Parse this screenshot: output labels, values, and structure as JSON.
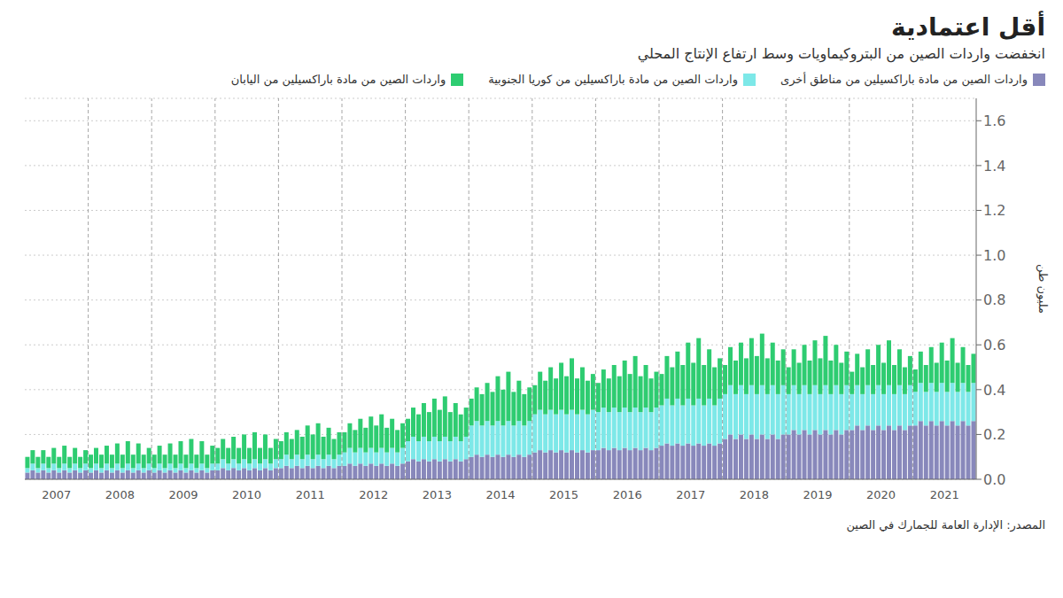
{
  "chart_data": {
    "type": "bar",
    "title": "أقل اعتمادية",
    "subtitle": "انخفضت واردات الصين من البتروكيماويات وسط ارتفاع الإنتاج المحلي",
    "ylabel": "مليون طن",
    "source": "المصدر: الإدارة العامة للجمارك في الصين",
    "stacked": true,
    "grid": true,
    "legend": "top",
    "ylim": [
      0,
      1.7
    ],
    "yticks": [
      {
        "value": 0,
        "label": "0.0"
      },
      0.2,
      0.4,
      0.6,
      0.8,
      {
        "value": 1.0,
        "label": "1.0"
      },
      1.2,
      1.4,
      1.6
    ],
    "categories": [
      "2007",
      null,
      null,
      null,
      null,
      null,
      null,
      null,
      null,
      null,
      null,
      null,
      "2008",
      null,
      null,
      null,
      null,
      null,
      null,
      null,
      null,
      null,
      null,
      null,
      "2009",
      null,
      null,
      null,
      null,
      null,
      null,
      null,
      null,
      null,
      null,
      null,
      "2010",
      null,
      null,
      null,
      null,
      null,
      null,
      null,
      null,
      null,
      null,
      null,
      "2011",
      null,
      null,
      null,
      null,
      null,
      null,
      null,
      null,
      null,
      null,
      null,
      "2012",
      null,
      null,
      null,
      null,
      null,
      null,
      null,
      null,
      null,
      null,
      null,
      "2013",
      null,
      null,
      null,
      null,
      null,
      null,
      null,
      null,
      null,
      null,
      null,
      "2014",
      null,
      null,
      null,
      null,
      null,
      null,
      null,
      null,
      null,
      null,
      null,
      "2015",
      null,
      null,
      null,
      null,
      null,
      null,
      null,
      null,
      null,
      null,
      null,
      "2016",
      null,
      null,
      null,
      null,
      null,
      null,
      null,
      null,
      null,
      null,
      null,
      "2017",
      null,
      null,
      null,
      null,
      null,
      null,
      null,
      null,
      null,
      null,
      null,
      "2018",
      null,
      null,
      null,
      null,
      null,
      null,
      null,
      null,
      null,
      null,
      null,
      "2019",
      null,
      null,
      null,
      null,
      null,
      null,
      null,
      null,
      null,
      null,
      null,
      "2020",
      null,
      null,
      null,
      null,
      null,
      null,
      null,
      null,
      null,
      null,
      null,
      "2021",
      null,
      null,
      null,
      null,
      null,
      null,
      null,
      null,
      null,
      null,
      null
    ],
    "series": [
      {
        "name": "واردات الصين من مادة باراكسيلين من مناطق أخرى",
        "color": "#8888bb",
        "values": [
          0.03,
          0.04,
          0.03,
          0.04,
          0.03,
          0.04,
          0.03,
          0.04,
          0.03,
          0.04,
          0.03,
          0.04,
          0.03,
          0.04,
          0.03,
          0.04,
          0.03,
          0.04,
          0.03,
          0.04,
          0.03,
          0.04,
          0.03,
          0.04,
          0.03,
          0.04,
          0.03,
          0.04,
          0.03,
          0.04,
          0.03,
          0.04,
          0.03,
          0.04,
          0.03,
          0.04,
          0.04,
          0.05,
          0.04,
          0.05,
          0.04,
          0.05,
          0.04,
          0.05,
          0.04,
          0.05,
          0.04,
          0.05,
          0.05,
          0.06,
          0.05,
          0.06,
          0.05,
          0.06,
          0.05,
          0.06,
          0.05,
          0.06,
          0.05,
          0.06,
          0.06,
          0.07,
          0.06,
          0.07,
          0.06,
          0.07,
          0.06,
          0.07,
          0.06,
          0.07,
          0.06,
          0.07,
          0.08,
          0.09,
          0.08,
          0.09,
          0.08,
          0.09,
          0.08,
          0.09,
          0.08,
          0.09,
          0.08,
          0.09,
          0.1,
          0.11,
          0.1,
          0.11,
          0.1,
          0.11,
          0.1,
          0.11,
          0.1,
          0.11,
          0.1,
          0.11,
          0.12,
          0.13,
          0.12,
          0.13,
          0.12,
          0.13,
          0.12,
          0.13,
          0.12,
          0.13,
          0.12,
          0.13,
          0.13,
          0.14,
          0.13,
          0.14,
          0.13,
          0.14,
          0.13,
          0.14,
          0.13,
          0.14,
          0.13,
          0.14,
          0.15,
          0.16,
          0.15,
          0.16,
          0.15,
          0.16,
          0.15,
          0.16,
          0.15,
          0.16,
          0.15,
          0.16,
          0.18,
          0.2,
          0.18,
          0.2,
          0.18,
          0.2,
          0.18,
          0.2,
          0.18,
          0.2,
          0.18,
          0.2,
          0.2,
          0.22,
          0.2,
          0.22,
          0.2,
          0.22,
          0.2,
          0.22,
          0.2,
          0.22,
          0.2,
          0.22,
          0.22,
          0.24,
          0.22,
          0.24,
          0.22,
          0.24,
          0.22,
          0.24,
          0.22,
          0.24,
          0.22,
          0.24,
          0.24,
          0.26,
          0.24,
          0.26,
          0.24,
          0.26,
          0.24,
          0.26,
          0.24,
          0.26,
          0.24,
          0.26
        ]
      },
      {
        "name": "واردات الصين من مادة باراكسيلين من كوريا الجنوبية",
        "color": "#7de8e8",
        "values": [
          0.02,
          0.03,
          0.02,
          0.03,
          0.02,
          0.03,
          0.02,
          0.03,
          0.02,
          0.03,
          0.02,
          0.03,
          0.02,
          0.03,
          0.02,
          0.03,
          0.02,
          0.03,
          0.02,
          0.03,
          0.02,
          0.03,
          0.02,
          0.03,
          0.02,
          0.03,
          0.02,
          0.03,
          0.02,
          0.03,
          0.02,
          0.03,
          0.02,
          0.03,
          0.02,
          0.03,
          0.03,
          0.04,
          0.03,
          0.04,
          0.03,
          0.04,
          0.03,
          0.04,
          0.03,
          0.04,
          0.03,
          0.04,
          0.04,
          0.05,
          0.04,
          0.05,
          0.04,
          0.05,
          0.04,
          0.05,
          0.04,
          0.05,
          0.04,
          0.05,
          0.06,
          0.07,
          0.06,
          0.07,
          0.06,
          0.07,
          0.06,
          0.07,
          0.06,
          0.07,
          0.06,
          0.07,
          0.09,
          0.1,
          0.09,
          0.1,
          0.09,
          0.1,
          0.09,
          0.1,
          0.09,
          0.1,
          0.09,
          0.1,
          0.14,
          0.15,
          0.14,
          0.15,
          0.14,
          0.15,
          0.14,
          0.15,
          0.14,
          0.15,
          0.14,
          0.15,
          0.17,
          0.18,
          0.17,
          0.18,
          0.17,
          0.18,
          0.17,
          0.18,
          0.17,
          0.18,
          0.17,
          0.18,
          0.17,
          0.18,
          0.17,
          0.18,
          0.17,
          0.18,
          0.17,
          0.18,
          0.17,
          0.18,
          0.17,
          0.18,
          0.18,
          0.2,
          0.18,
          0.2,
          0.18,
          0.2,
          0.18,
          0.2,
          0.18,
          0.2,
          0.18,
          0.2,
          0.2,
          0.22,
          0.2,
          0.22,
          0.2,
          0.22,
          0.2,
          0.22,
          0.2,
          0.22,
          0.2,
          0.22,
          0.18,
          0.2,
          0.18,
          0.2,
          0.18,
          0.2,
          0.18,
          0.2,
          0.18,
          0.2,
          0.18,
          0.2,
          0.16,
          0.18,
          0.16,
          0.18,
          0.16,
          0.18,
          0.16,
          0.18,
          0.16,
          0.18,
          0.16,
          0.18,
          0.15,
          0.17,
          0.15,
          0.17,
          0.15,
          0.17,
          0.15,
          0.17,
          0.15,
          0.17,
          0.15,
          0.17
        ]
      },
      {
        "name": "واردات الصين من مادة باراكسيلين من اليابان",
        "color": "#2ecc71",
        "values": [
          0.05,
          0.06,
          0.05,
          0.06,
          0.05,
          0.07,
          0.05,
          0.08,
          0.05,
          0.07,
          0.05,
          0.06,
          0.06,
          0.07,
          0.06,
          0.08,
          0.06,
          0.09,
          0.06,
          0.1,
          0.06,
          0.09,
          0.06,
          0.07,
          0.06,
          0.08,
          0.06,
          0.09,
          0.06,
          0.1,
          0.06,
          0.11,
          0.06,
          0.1,
          0.06,
          0.08,
          0.07,
          0.09,
          0.07,
          0.1,
          0.07,
          0.11,
          0.07,
          0.12,
          0.07,
          0.11,
          0.07,
          0.09,
          0.08,
          0.1,
          0.09,
          0.11,
          0.1,
          0.13,
          0.11,
          0.14,
          0.1,
          0.12,
          0.09,
          0.1,
          0.09,
          0.11,
          0.1,
          0.13,
          0.11,
          0.14,
          0.12,
          0.15,
          0.11,
          0.13,
          0.1,
          0.11,
          0.1,
          0.13,
          0.12,
          0.15,
          0.13,
          0.17,
          0.14,
          0.18,
          0.13,
          0.15,
          0.12,
          0.13,
          0.12,
          0.15,
          0.14,
          0.17,
          0.15,
          0.2,
          0.16,
          0.22,
          0.15,
          0.18,
          0.14,
          0.15,
          0.13,
          0.17,
          0.15,
          0.19,
          0.16,
          0.21,
          0.17,
          0.23,
          0.16,
          0.19,
          0.15,
          0.16,
          0.13,
          0.17,
          0.15,
          0.19,
          0.16,
          0.21,
          0.17,
          0.23,
          0.16,
          0.19,
          0.15,
          0.16,
          0.14,
          0.19,
          0.17,
          0.21,
          0.18,
          0.25,
          0.19,
          0.27,
          0.18,
          0.22,
          0.17,
          0.18,
          0.13,
          0.17,
          0.15,
          0.19,
          0.16,
          0.21,
          0.17,
          0.23,
          0.16,
          0.19,
          0.15,
          0.16,
          0.12,
          0.16,
          0.14,
          0.18,
          0.15,
          0.2,
          0.16,
          0.22,
          0.15,
          0.18,
          0.14,
          0.15,
          0.1,
          0.14,
          0.12,
          0.16,
          0.13,
          0.18,
          0.14,
          0.2,
          0.13,
          0.16,
          0.12,
          0.13,
          0.1,
          0.14,
          0.12,
          0.16,
          0.13,
          0.18,
          0.14,
          0.2,
          0.13,
          0.16,
          0.12,
          0.13
        ]
      }
    ]
  }
}
